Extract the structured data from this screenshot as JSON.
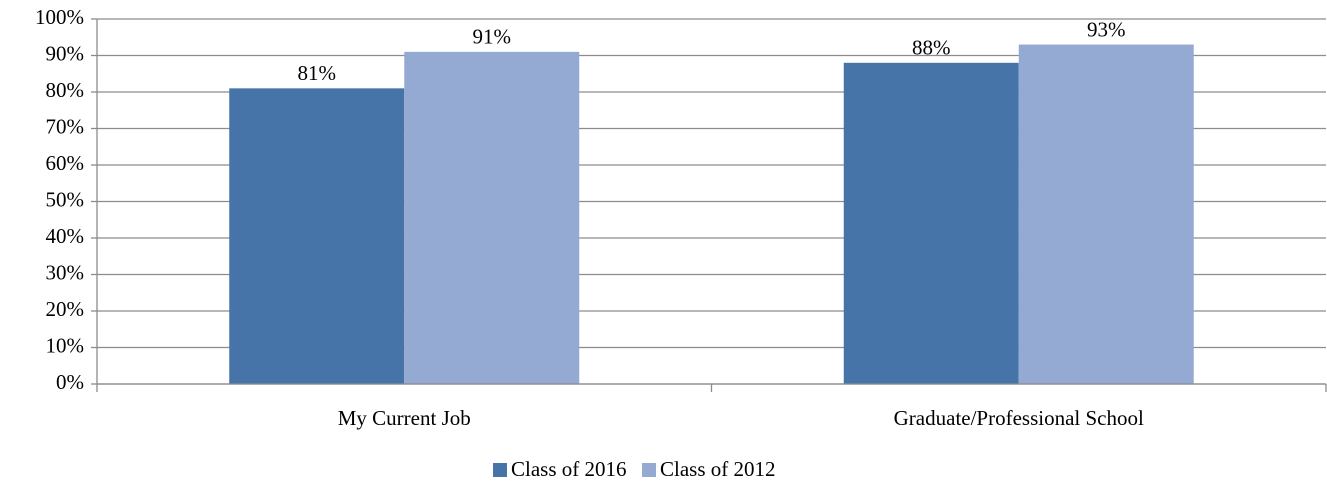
{
  "chart_data": {
    "type": "bar",
    "categories": [
      "My Current Job",
      "Graduate/Professional School"
    ],
    "series": [
      {
        "name": "Class of 2016",
        "color": "#4674a8",
        "values": [
          81,
          88
        ],
        "value_labels": [
          "81%",
          "88%"
        ]
      },
      {
        "name": "Class of 2012",
        "color": "#95aad2",
        "values": [
          91,
          93
        ],
        "value_labels": [
          "91%",
          "93%"
        ]
      }
    ],
    "ylim": [
      0,
      100
    ],
    "yticks": [
      {
        "value": 0,
        "label": "0%"
      },
      {
        "value": 10,
        "label": "10%"
      },
      {
        "value": 20,
        "label": "20%"
      },
      {
        "value": 30,
        "label": "30%"
      },
      {
        "value": 40,
        "label": "40%"
      },
      {
        "value": 50,
        "label": "50%"
      },
      {
        "value": 60,
        "label": "60%"
      },
      {
        "value": 70,
        "label": "70%"
      },
      {
        "value": 80,
        "label": "80%"
      },
      {
        "value": 90,
        "label": "90%"
      },
      {
        "value": 100,
        "label": "100%"
      }
    ],
    "grid": true,
    "legend": "bottom"
  }
}
